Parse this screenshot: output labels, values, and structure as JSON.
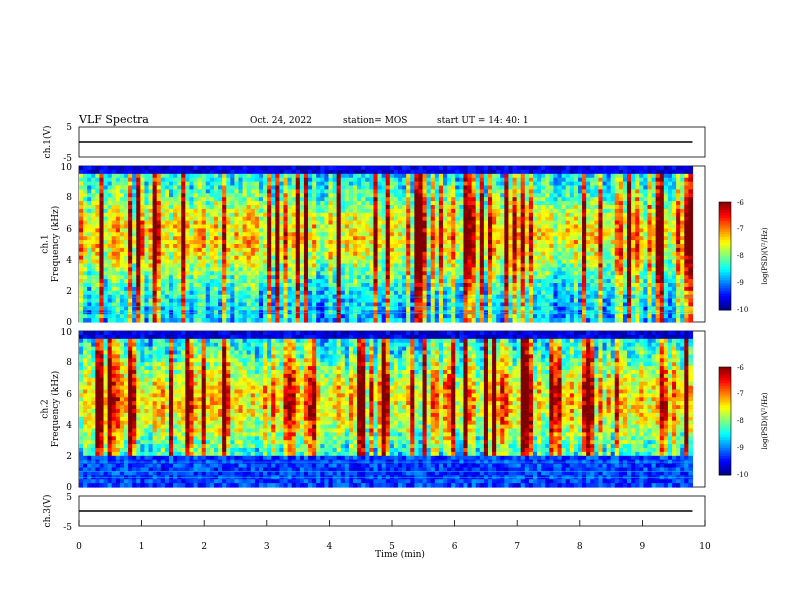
{
  "header": {
    "title": "VLF Spectra",
    "date": "Oct. 24, 2022",
    "station": "station= MOS",
    "start": "start  UT =   14: 40: 1"
  },
  "chart_data": [
    {
      "type": "line",
      "name": "ch1-waveform",
      "ylabel": "ch.1(V)",
      "ylim": [
        -5,
        5
      ],
      "yticks": [
        "5",
        "-5"
      ],
      "xlim": [
        0,
        10
      ],
      "x": [
        0,
        9.8
      ],
      "values": [
        0,
        0
      ]
    },
    {
      "type": "heatmap",
      "name": "ch1-spectrogram",
      "ylabel": "ch.1\nFrequency (kHz)",
      "ylim": [
        0,
        10
      ],
      "yticks": [
        "0",
        "2",
        "4",
        "6",
        "8",
        "10"
      ],
      "xlim": [
        0,
        9.8
      ],
      "colorbar": {
        "label": "log(PSD)(V²/Hz)",
        "range": [
          -10,
          -6
        ],
        "ticks": [
          "-6",
          "-7",
          "-8",
          "-9",
          "-10"
        ]
      }
    },
    {
      "type": "heatmap",
      "name": "ch2-spectrogram",
      "ylabel": "ch.2\nFrequency (kHz)",
      "ylim": [
        0,
        10
      ],
      "yticks": [
        "0",
        "2",
        "4",
        "6",
        "8",
        "10"
      ],
      "xlim": [
        0,
        9.8
      ],
      "colorbar": {
        "label": "log(PSD)(V²/Hz)",
        "range": [
          -10,
          -6
        ],
        "ticks": [
          "-6",
          "-7",
          "-8",
          "-9",
          "-10"
        ]
      }
    },
    {
      "type": "line",
      "name": "ch3-waveform",
      "ylabel": "ch.3(V)",
      "ylim": [
        -5,
        5
      ],
      "yticks": [
        "5",
        "-5"
      ],
      "xlim": [
        0,
        10
      ],
      "x": [
        0,
        9.8
      ],
      "values": [
        0,
        0
      ],
      "xlabel": "Time (min)",
      "xticks": [
        "0",
        "1",
        "2",
        "3",
        "4",
        "5",
        "6",
        "7",
        "8",
        "9",
        "10"
      ]
    }
  ]
}
